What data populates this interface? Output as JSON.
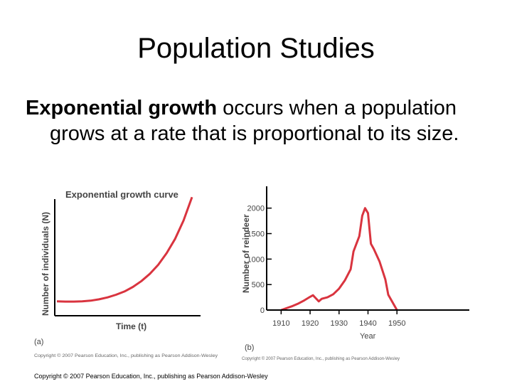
{
  "slide": {
    "title": "Population Studies",
    "body_term": "Exponential growth",
    "body_rest": " occurs when a population grows at a rate that is proportional to its size.",
    "footer": "Copyright © 2007 Pearson Education, Inc., publishing as Pearson Addison-Wesley"
  },
  "colors": {
    "curve": "#d9343f",
    "axis": "#000000",
    "caption": "#555555"
  },
  "chart_data": [
    {
      "type": "line",
      "panel": "(a)",
      "title": "Exponential growth curve",
      "xlabel": "Time (t)",
      "ylabel": "Number of individuals (N)",
      "ticks": "none",
      "credit": "Copyright © 2007 Pearson Education, Inc., publishing as Pearson Addison-Wesley",
      "x": [
        0,
        0.5,
        1,
        1.5,
        2,
        2.5,
        3,
        3.5,
        4,
        4.5,
        5,
        5.5,
        6,
        6.5,
        7,
        7.5,
        8
      ],
      "y": [
        1.0,
        0.98,
        0.98,
        1.0,
        1.05,
        1.15,
        1.3,
        1.5,
        1.75,
        2.1,
        2.55,
        3.1,
        3.8,
        4.7,
        5.8,
        7.2,
        9.0
      ],
      "xlim": [
        0,
        8
      ],
      "ylim": [
        0,
        9.5
      ]
    },
    {
      "type": "line",
      "panel": "(b)",
      "xlabel": "Year",
      "ylabel": "Number of reindeer",
      "credit": "Copyright © 2007 Pearson Education, Inc., publishing as Pearson Addison-Wesley",
      "x": [
        1910,
        1912,
        1914,
        1916,
        1918,
        1920,
        1921,
        1922,
        1923,
        1924,
        1926,
        1928,
        1930,
        1932,
        1934,
        1935,
        1936,
        1937,
        1938,
        1939,
        1940,
        1941,
        1942,
        1944,
        1946,
        1947,
        1948,
        1950
      ],
      "y": [
        0,
        40,
        80,
        130,
        190,
        260,
        290,
        230,
        170,
        220,
        250,
        310,
        420,
        580,
        800,
        1150,
        1300,
        1450,
        1850,
        2000,
        1900,
        1300,
        1200,
        950,
        600,
        300,
        200,
        0
      ],
      "xticks": [
        1910,
        1920,
        1930,
        1940,
        1950
      ],
      "yticks": [
        0,
        500,
        1000,
        1500,
        2000
      ],
      "xlim": [
        1905,
        1975
      ],
      "ylim": [
        0,
        2400
      ]
    }
  ]
}
